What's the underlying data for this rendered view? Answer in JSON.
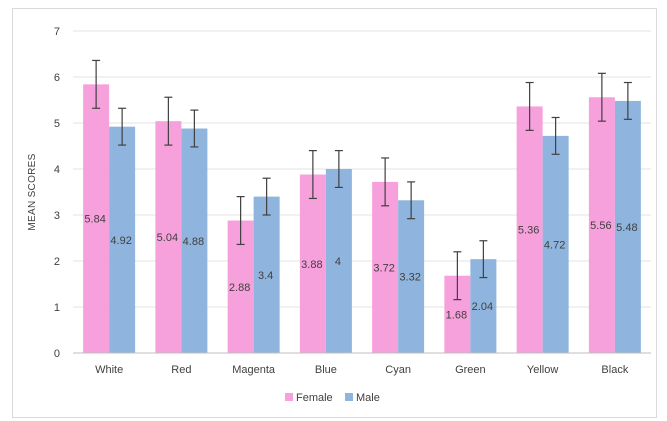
{
  "chart_data": {
    "type": "bar",
    "title": "",
    "xlabel": "",
    "ylabel": "MEAN SCORES",
    "ylim": [
      0,
      7
    ],
    "yticks": [
      0,
      1,
      2,
      3,
      4,
      5,
      6,
      7
    ],
    "grid": true,
    "legend_position": "bottom",
    "error_bars": true,
    "categories": [
      "White",
      "Red",
      "Magenta",
      "Blue",
      "Cyan",
      "Green",
      "Yellow",
      "Black"
    ],
    "series": [
      {
        "name": "Female",
        "color": "#f7a1dc",
        "values": [
          5.84,
          5.04,
          2.88,
          3.88,
          3.72,
          1.68,
          5.36,
          5.56
        ],
        "labels": [
          "5.84",
          "5.04",
          "2.88",
          "3.88",
          "3.72",
          "1.68",
          "5.36",
          "5.56"
        ],
        "error": [
          0.52,
          0.52,
          0.52,
          0.52,
          0.52,
          0.52,
          0.52,
          0.52
        ]
      },
      {
        "name": "Male",
        "color": "#8fb5de",
        "values": [
          4.92,
          4.88,
          3.4,
          4,
          3.32,
          2.04,
          4.72,
          5.48
        ],
        "labels": [
          "4.92",
          "4.88",
          "3.4",
          "4",
          "3.32",
          "2.04",
          "4.72",
          "5.48"
        ],
        "error": [
          0.4,
          0.4,
          0.4,
          0.4,
          0.4,
          0.4,
          0.4,
          0.4
        ]
      }
    ]
  }
}
